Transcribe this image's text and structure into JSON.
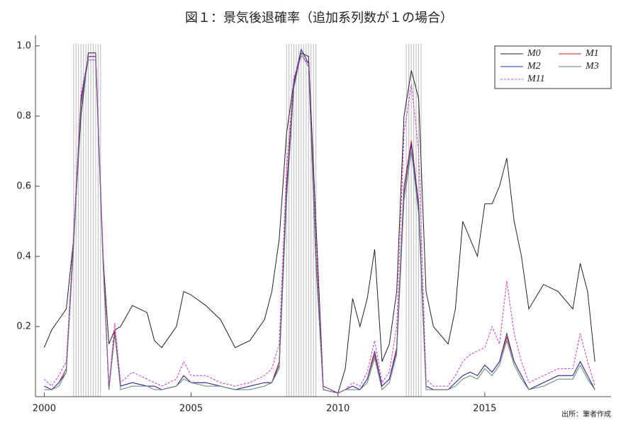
{
  "chart_data": {
    "type": "line",
    "title": "図１：景気後退確率（追加系列数が１の場合）",
    "source": "出所：筆者作成",
    "x": [
      2000.0,
      2000.25,
      2000.5,
      2000.75,
      2001.0,
      2001.25,
      2001.5,
      2001.75,
      2002.0,
      2002.2,
      2002.4,
      2002.6,
      2003.0,
      2003.5,
      2003.75,
      2004.0,
      2004.5,
      2004.75,
      2005.0,
      2005.5,
      2006.0,
      2006.5,
      2007.0,
      2007.5,
      2007.75,
      2008.0,
      2008.25,
      2008.5,
      2008.75,
      2009.0,
      2009.25,
      2009.5,
      2010.0,
      2010.25,
      2010.5,
      2010.75,
      2011.0,
      2011.25,
      2011.5,
      2011.75,
      2012.0,
      2012.25,
      2012.5,
      2012.75,
      2013.0,
      2013.25,
      2013.75,
      2014.0,
      2014.25,
      2014.5,
      2014.75,
      2015.0,
      2015.25,
      2015.5,
      2015.75,
      2016.0,
      2016.25,
      2016.5,
      2017.0,
      2017.5,
      2018.0,
      2018.25,
      2018.5,
      2018.75
    ],
    "series": [
      {
        "name": "M0",
        "color": "#222222",
        "dash": false,
        "values": [
          0.14,
          0.19,
          0.22,
          0.25,
          0.45,
          0.8,
          0.98,
          0.98,
          0.4,
          0.15,
          0.19,
          0.2,
          0.26,
          0.24,
          0.16,
          0.14,
          0.2,
          0.3,
          0.29,
          0.26,
          0.22,
          0.14,
          0.16,
          0.22,
          0.3,
          0.45,
          0.75,
          0.9,
          0.98,
          0.97,
          0.5,
          0.03,
          0.01,
          0.08,
          0.28,
          0.2,
          0.28,
          0.42,
          0.1,
          0.15,
          0.3,
          0.8,
          0.93,
          0.85,
          0.3,
          0.2,
          0.15,
          0.25,
          0.5,
          0.45,
          0.4,
          0.55,
          0.55,
          0.6,
          0.68,
          0.5,
          0.4,
          0.25,
          0.32,
          0.3,
          0.25,
          0.38,
          0.3,
          0.1
        ]
      },
      {
        "name": "M1",
        "color": "#d42020",
        "dash": false,
        "values": [
          0.03,
          0.02,
          0.04,
          0.08,
          0.45,
          0.85,
          0.97,
          0.97,
          0.4,
          0.02,
          0.19,
          0.03,
          0.04,
          0.03,
          0.03,
          0.02,
          0.03,
          0.06,
          0.04,
          0.04,
          0.03,
          0.02,
          0.03,
          0.04,
          0.04,
          0.1,
          0.6,
          0.9,
          0.99,
          0.95,
          0.4,
          0.02,
          0.01,
          0.02,
          0.03,
          0.02,
          0.05,
          0.12,
          0.03,
          0.05,
          0.14,
          0.6,
          0.73,
          0.55,
          0.03,
          0.02,
          0.02,
          0.04,
          0.06,
          0.07,
          0.06,
          0.09,
          0.07,
          0.1,
          0.17,
          0.1,
          0.06,
          0.02,
          0.04,
          0.06,
          0.06,
          0.1,
          0.06,
          0.02
        ]
      },
      {
        "name": "M2",
        "color": "#2a2ab0",
        "dash": false,
        "values": [
          0.03,
          0.02,
          0.04,
          0.07,
          0.44,
          0.84,
          0.97,
          0.97,
          0.39,
          0.02,
          0.18,
          0.03,
          0.04,
          0.03,
          0.03,
          0.02,
          0.03,
          0.06,
          0.04,
          0.04,
          0.03,
          0.02,
          0.03,
          0.04,
          0.04,
          0.09,
          0.58,
          0.89,
          0.99,
          0.95,
          0.39,
          0.02,
          0.01,
          0.02,
          0.03,
          0.02,
          0.05,
          0.13,
          0.03,
          0.05,
          0.13,
          0.58,
          0.72,
          0.54,
          0.03,
          0.02,
          0.02,
          0.04,
          0.06,
          0.07,
          0.06,
          0.09,
          0.07,
          0.1,
          0.18,
          0.1,
          0.06,
          0.02,
          0.04,
          0.06,
          0.06,
          0.1,
          0.06,
          0.02
        ]
      },
      {
        "name": "M3",
        "color": "#5a8a70",
        "dash": false,
        "values": [
          0.02,
          0.02,
          0.03,
          0.07,
          0.43,
          0.83,
          0.96,
          0.96,
          0.38,
          0.02,
          0.18,
          0.02,
          0.03,
          0.03,
          0.02,
          0.02,
          0.03,
          0.05,
          0.04,
          0.03,
          0.03,
          0.02,
          0.02,
          0.03,
          0.04,
          0.08,
          0.56,
          0.88,
          0.98,
          0.94,
          0.38,
          0.02,
          0.01,
          0.02,
          0.02,
          0.02,
          0.04,
          0.11,
          0.02,
          0.04,
          0.12,
          0.56,
          0.7,
          0.52,
          0.02,
          0.02,
          0.02,
          0.03,
          0.05,
          0.06,
          0.05,
          0.08,
          0.06,
          0.09,
          0.16,
          0.09,
          0.05,
          0.02,
          0.03,
          0.05,
          0.05,
          0.09,
          0.05,
          0.02
        ]
      },
      {
        "name": "M11",
        "color": "#d030d0",
        "dash": true,
        "values": [
          0.05,
          0.03,
          0.06,
          0.1,
          0.47,
          0.86,
          0.97,
          0.97,
          0.42,
          0.03,
          0.21,
          0.04,
          0.07,
          0.05,
          0.04,
          0.03,
          0.05,
          0.1,
          0.06,
          0.06,
          0.04,
          0.03,
          0.04,
          0.06,
          0.08,
          0.15,
          0.65,
          0.91,
          0.97,
          0.95,
          0.45,
          0.03,
          0.01,
          0.02,
          0.04,
          0.03,
          0.07,
          0.16,
          0.04,
          0.07,
          0.2,
          0.75,
          0.89,
          0.7,
          0.05,
          0.03,
          0.03,
          0.06,
          0.1,
          0.12,
          0.13,
          0.14,
          0.2,
          0.15,
          0.33,
          0.18,
          0.1,
          0.04,
          0.06,
          0.08,
          0.08,
          0.18,
          0.1,
          0.03
        ]
      }
    ],
    "shaded_periods": [
      [
        2001.0,
        2001.92
      ],
      [
        2008.25,
        2009.25
      ],
      [
        2012.33,
        2012.83
      ]
    ],
    "xlim": [
      1999.7,
      2019.3
    ],
    "ylim": [
      0,
      1.03
    ],
    "xticks": [
      2000,
      2005,
      2010,
      2015
    ],
    "yticks": [
      0.2,
      0.4,
      0.6,
      0.8,
      {
        "value": 1.0,
        "label": "1.0"
      }
    ],
    "legend": "upper right"
  }
}
